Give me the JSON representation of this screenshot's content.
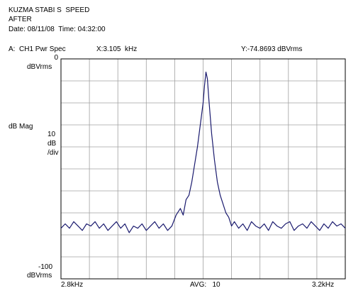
{
  "header": {
    "line1": "KUZMA STABI S  SPEED",
    "line2": "AFTER",
    "date_line": "Date: 08/11/08  Time: 04:32:00"
  },
  "status": {
    "trace": "A:  CH1 Pwr Spec",
    "x_readout": "X:3.105  kHz",
    "y_readout": "Y:-74.8693 dBVrms"
  },
  "axes": {
    "top_value": "0",
    "top_unit": "dBVrms",
    "mag_label": "dB Mag",
    "scale_value": "10",
    "scale_unit": "dB",
    "scale_per": "/div",
    "bottom_value": "-100",
    "bottom_unit": "dBVrms",
    "x_start": "2.8kHz",
    "x_end": "3.2kHz",
    "avg": "AVG:   10"
  },
  "colors": {
    "trace": "#1a1a6e",
    "grid": "#a0a0a0",
    "frame": "#000000"
  },
  "chart_data": {
    "type": "line",
    "xlabel": "",
    "ylabel": "dB Mag",
    "xlim": [
      2.8,
      3.2
    ],
    "ylim": [
      -100,
      0
    ],
    "grid": true,
    "series": [
      {
        "x": [
          2.8,
          2.806,
          2.812,
          2.818,
          2.824,
          2.83,
          2.836,
          2.842,
          2.848,
          2.854,
          2.86,
          2.866,
          2.872,
          2.878,
          2.884,
          2.89,
          2.896,
          2.902,
          2.908,
          2.914,
          2.92,
          2.926,
          2.932,
          2.938,
          2.944,
          2.95,
          2.956,
          2.962,
          2.968,
          2.972,
          2.976,
          2.98,
          2.984,
          2.988,
          2.992,
          2.996,
          3.0,
          3.002,
          3.004,
          3.006,
          3.008,
          3.012,
          3.016,
          3.02,
          3.024,
          3.028,
          3.032,
          3.036,
          3.04,
          3.044,
          3.05,
          3.056,
          3.062,
          3.068,
          3.074,
          3.08,
          3.086,
          3.092,
          3.098,
          3.104,
          3.11,
          3.116,
          3.122,
          3.128,
          3.134,
          3.14,
          3.146,
          3.152,
          3.158,
          3.164,
          3.17,
          3.176,
          3.182,
          3.188,
          3.194,
          3.2
        ],
        "y": [
          -77,
          -75,
          -77,
          -74,
          -76,
          -78,
          -75,
          -76,
          -74,
          -77,
          -75,
          -78,
          -76,
          -74,
          -77,
          -75,
          -79,
          -76,
          -77,
          -75,
          -78,
          -76,
          -74,
          -77,
          -75,
          -78,
          -76,
          -71,
          -68,
          -71,
          -64,
          -62,
          -56,
          -48,
          -40,
          -30,
          -20,
          -12,
          -6,
          -9,
          -18,
          -34,
          -46,
          -56,
          -62,
          -66,
          -70,
          -72,
          -76,
          -74,
          -77,
          -75,
          -78,
          -74,
          -76,
          -77,
          -75,
          -78,
          -74,
          -76,
          -77,
          -75,
          -74,
          -78,
          -76,
          -75,
          -77,
          -74,
          -76,
          -78,
          -75,
          -77,
          -74,
          -76,
          -75,
          -77
        ]
      }
    ]
  }
}
